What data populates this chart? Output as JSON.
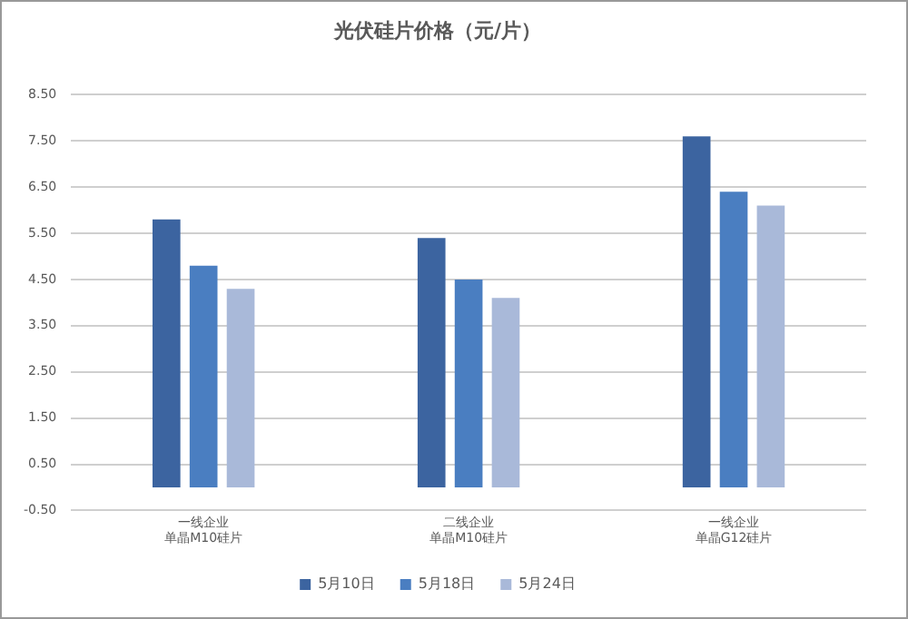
{
  "chart_data": {
    "type": "bar",
    "title": "光伏硅片价格（元/片）",
    "categories": [
      "一线企业单晶M10硅片",
      "二线企业单晶M10硅片",
      "一线企业单晶G12硅片"
    ],
    "series": [
      {
        "name": "5月10日",
        "color": "#3c64a0",
        "values": [
          5.8,
          5.4,
          7.6
        ]
      },
      {
        "name": "5月18日",
        "color": "#4a7ec1",
        "values": [
          4.8,
          4.5,
          6.4
        ]
      },
      {
        "name": "5月24日",
        "color": "#a9b9d9",
        "values": [
          4.3,
          4.1,
          6.1
        ]
      }
    ],
    "ylim": [
      -0.5,
      8.5
    ],
    "yticks": [
      {
        "value": -0.5,
        "label": "-0.50"
      },
      {
        "value": 0.5,
        "label": "0.50"
      },
      {
        "value": 1.5,
        "label": "1.50"
      },
      {
        "value": 2.5,
        "label": "2.50"
      },
      {
        "value": 3.5,
        "label": "3.50"
      },
      {
        "value": 4.5,
        "label": "4.50"
      },
      {
        "value": 5.5,
        "label": "5.50"
      },
      {
        "value": 6.5,
        "label": "6.50"
      },
      {
        "value": 7.5,
        "label": "7.50"
      },
      {
        "value": 8.5,
        "label": "8.50"
      }
    ],
    "grid": "y",
    "legend": "bottom"
  }
}
